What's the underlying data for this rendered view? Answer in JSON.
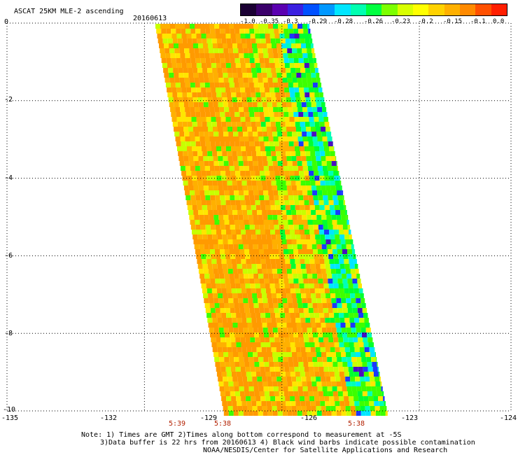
{
  "header": {
    "title": "ASCAT 25KM MLE-2 ascending",
    "date": "20160613"
  },
  "colorbar": {
    "labels": [
      "-1.0",
      "-0.35",
      "-0.3",
      "-0.29",
      "-0.28",
      "-0.26",
      "-0.23",
      "-0.2",
      "-0.15",
      "-0.1",
      "0.0"
    ],
    "colors": [
      "#1a0033",
      "#3a006a",
      "#5a00b0",
      "#3a1fe0",
      "#0050ff",
      "#0098ff",
      "#00e6ff",
      "#00ffb0",
      "#00ff40",
      "#7cff00",
      "#d8ff00",
      "#ffff00",
      "#ffd200",
      "#ffb000",
      "#ff8a00",
      "#ff5000",
      "#ff1e00"
    ]
  },
  "map": {
    "lon_range": [
      -135,
      -124
    ],
    "lat_range": [
      -10,
      0
    ],
    "lon_ticks": [
      "-135",
      "-132",
      "-129",
      "-126",
      "-123",
      "-124"
    ],
    "lat_ticks": [
      "0",
      "-2",
      "-4",
      "-6",
      "-8",
      "-10"
    ],
    "swath_colors": {
      "orange": "#ff9a00",
      "light_orange": "#ffb000",
      "yellow": "#ffe600",
      "yellow_green": "#c8ff00",
      "green": "#3cff00",
      "bright_green": "#00ff30",
      "aqua": "#00ffb8",
      "cyan": "#00e6ff",
      "blue": "#1a3aff",
      "purple": "#4a10c0"
    }
  },
  "time_labels": [
    "5:39",
    "5:38",
    "5:38"
  ],
  "notes": {
    "line1": "Note: 1) Times are GMT 2)Times along bottom correspond to measurement at -5S",
    "line2": "3)Data buffer is 22 hrs from 20160613 4) Black wind barbs indicate possible contamination",
    "line3": "NOAA/NESDIS/Center for Satellite Applications and Research"
  }
}
